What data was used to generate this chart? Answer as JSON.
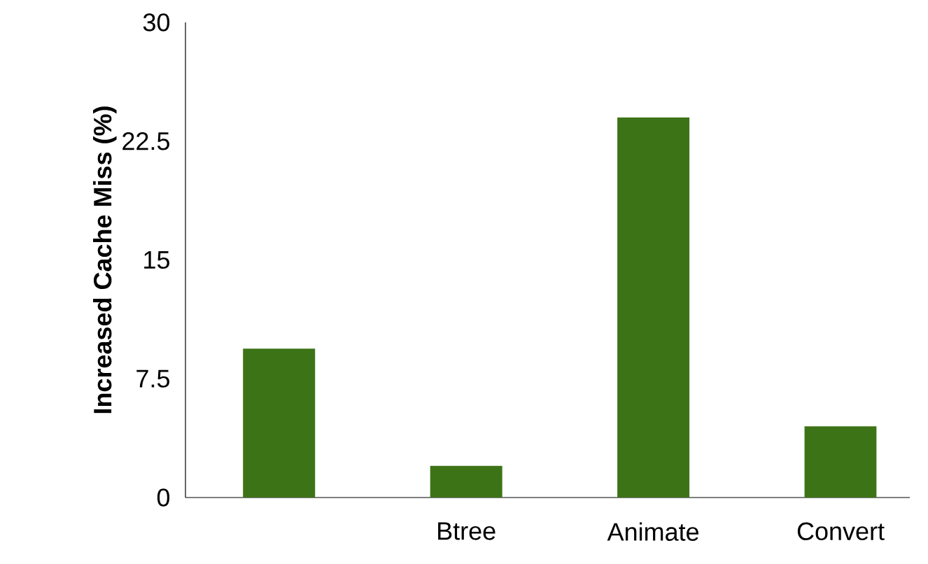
{
  "chart_data": {
    "type": "bar",
    "ylabel": "Increased Cache Miss (%)",
    "categories": [
      null,
      "Btree",
      "Animate",
      "Convert"
    ],
    "values": [
      9.4,
      2.0,
      24.0,
      4.5
    ],
    "color": "#3d7317",
    "ylim": [
      0,
      30
    ],
    "yticks": [
      0,
      7.5,
      15,
      22.5,
      30
    ],
    "grid": false
  }
}
